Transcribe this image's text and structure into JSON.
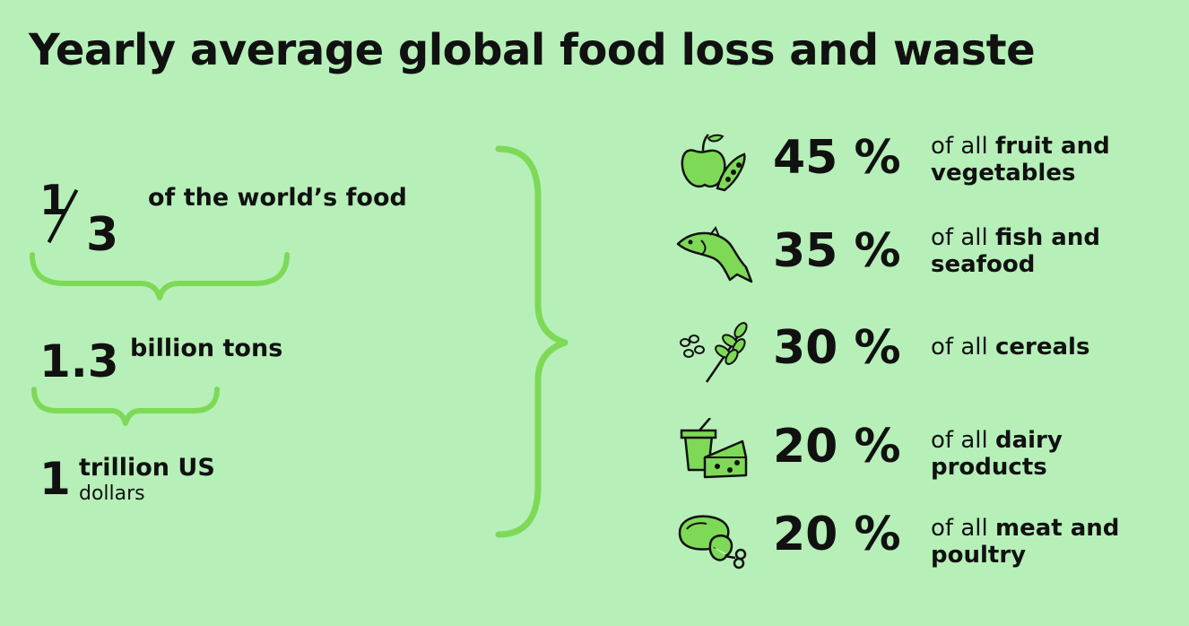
{
  "title": "Yearly average global food loss and waste",
  "summary": {
    "fraction_numerator": "1",
    "fraction_denominator": "3",
    "fraction_label": "of the world’s food",
    "tons_value": "1.3",
    "tons_label": "billion tons",
    "dollars_value": "1",
    "dollars_label_line1": "trillion US",
    "dollars_label_line2": "dollars"
  },
  "chart_data": {
    "type": "table",
    "title": "Yearly average global food loss and waste",
    "unit": "%",
    "categories": [
      "fruit and vegetables",
      "fish and seafood",
      "cereals",
      "dairy products",
      "meat and poultry"
    ],
    "values": [
      45,
      35,
      30,
      20,
      20
    ],
    "prefix": "of all",
    "icons": [
      "apple-peas-icon",
      "fish-icon",
      "wheat-grain-icon",
      "yogurt-cheese-icon",
      "steak-drumstick-icon"
    ],
    "colors": {
      "accent": "#7ed957",
      "background": "#b6f0b8",
      "ink": "#111111"
    }
  }
}
